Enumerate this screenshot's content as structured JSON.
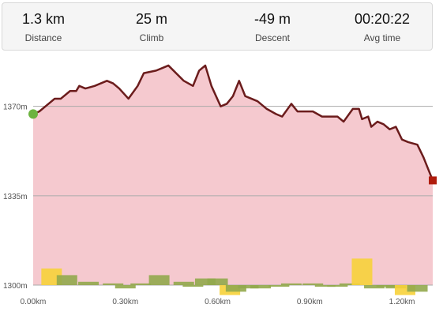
{
  "stats": [
    {
      "value": "1.3 km",
      "label": "Distance"
    },
    {
      "value": "25 m",
      "label": "Climb"
    },
    {
      "value": "-49 m",
      "label": "Descent"
    },
    {
      "value": "00:20:22",
      "label": "Avg time"
    }
  ],
  "chart_data": {
    "type": "area",
    "x_unit": "km",
    "y_unit": "m",
    "xlim": [
      0.0,
      1.3
    ],
    "ylim": [
      1300,
      1390
    ],
    "y_ticks": [
      {
        "value": 1300,
        "label": "1300m"
      },
      {
        "value": 1335,
        "label": "1335m"
      },
      {
        "value": 1370,
        "label": "1370m"
      }
    ],
    "x_ticks": [
      {
        "value": 0.0,
        "label": "0.00km"
      },
      {
        "value": 0.3,
        "label": "0.30km"
      },
      {
        "value": 0.6,
        "label": "0.60km"
      },
      {
        "value": 0.9,
        "label": "0.90km"
      },
      {
        "value": 1.2,
        "label": "1.20km"
      }
    ],
    "grid": "horizontal",
    "colors": {
      "line": "#6b1c1c",
      "fill": "#f5c9cf",
      "start_marker": "#6cb33f",
      "end_marker": "#b01c0c",
      "slope_up": "#f7d13a",
      "slope_mild": "#92a84c",
      "slope_down": "#f7d13a",
      "slope_steep_down": "#f0a64a",
      "grid": "#aaaaaa"
    },
    "elevation": {
      "x": [
        0.0,
        0.02,
        0.05,
        0.07,
        0.09,
        0.12,
        0.14,
        0.15,
        0.17,
        0.2,
        0.22,
        0.24,
        0.26,
        0.28,
        0.31,
        0.34,
        0.36,
        0.4,
        0.42,
        0.44,
        0.49,
        0.52,
        0.54,
        0.56,
        0.58,
        0.61,
        0.63,
        0.65,
        0.67,
        0.69,
        0.71,
        0.73,
        0.76,
        0.79,
        0.81,
        0.84,
        0.86,
        0.88,
        0.91,
        0.94,
        0.97,
        0.99,
        1.01,
        1.04,
        1.06,
        1.07,
        1.09,
        1.1,
        1.12,
        1.14,
        1.16,
        1.18,
        1.2,
        1.22,
        1.25,
        1.27,
        1.3
      ],
      "y": [
        1367,
        1368,
        1371,
        1373,
        1373,
        1376,
        1376,
        1378,
        1377,
        1378,
        1379,
        1380,
        1379,
        1377,
        1373,
        1378,
        1383,
        1384,
        1385,
        1386,
        1380,
        1378,
        1384,
        1386,
        1378,
        1370,
        1371,
        1374,
        1380,
        1374,
        1373,
        1372,
        1369,
        1367,
        1366,
        1371,
        1368,
        1368,
        1368,
        1366,
        1366,
        1366,
        1364,
        1369,
        1369,
        1365,
        1366,
        1362,
        1364,
        1363,
        1361,
        1362,
        1357,
        1356,
        1355,
        1350,
        1341
      ]
    },
    "slope_bars": {
      "x": [
        0.06,
        0.11,
        0.18,
        0.26,
        0.3,
        0.35,
        0.41,
        0.49,
        0.52,
        0.56,
        0.6,
        0.64,
        0.66,
        0.7,
        0.74,
        0.8,
        0.84,
        0.91,
        0.95,
        0.99,
        1.03,
        1.07,
        1.11,
        1.15,
        1.18,
        1.21,
        1.25
      ],
      "value": [
        5,
        3,
        1,
        0.5,
        -1,
        0.5,
        3,
        1,
        -0.5,
        2,
        2,
        -3,
        -2,
        -1,
        -1,
        -0.5,
        0.5,
        0.5,
        -0.5,
        -0.5,
        0.5,
        8,
        -1,
        -0.5,
        -1,
        -3,
        -2
      ]
    }
  }
}
